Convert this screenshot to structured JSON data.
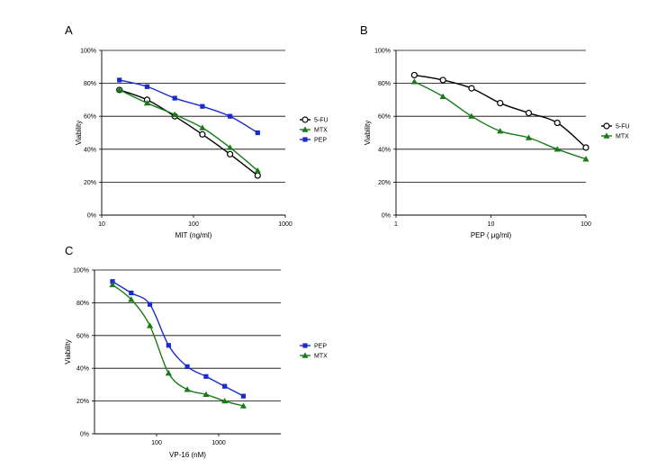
{
  "chart_data": [
    {
      "panel": "A",
      "type": "line",
      "xscale": "log",
      "xlabel": "MIT (ng/ml)",
      "ylabel": "Viability",
      "xlim": [
        10,
        1000
      ],
      "ylim": [
        0,
        100
      ],
      "xticks": [
        10,
        100,
        1000
      ],
      "xtick_labels": [
        "10",
        "100",
        "1000"
      ],
      "yticks": [
        0,
        20,
        40,
        60,
        80,
        100
      ],
      "ytick_labels": [
        "0%",
        "20%",
        "40%",
        "60%",
        "80%",
        "100%"
      ],
      "grid": "horizontal",
      "legend_position": "right",
      "series": [
        {
          "name": "5-FU",
          "marker": "circle-open",
          "color": "#000000",
          "x": [
            15.6,
            31.25,
            62.5,
            125,
            250,
            500
          ],
          "y": [
            76,
            70,
            60,
            49,
            37,
            24
          ]
        },
        {
          "name": "MTX",
          "marker": "triangle",
          "color": "#1a7a1a",
          "x": [
            15.6,
            31.25,
            62.5,
            125,
            250,
            500
          ],
          "y": [
            76,
            68,
            61,
            53,
            41,
            27
          ]
        },
        {
          "name": "PEP",
          "marker": "square",
          "color": "#1a2ad0",
          "x": [
            15.6,
            31.25,
            62.5,
            125,
            250,
            500
          ],
          "y": [
            82,
            78,
            71,
            66,
            60,
            50
          ]
        }
      ]
    },
    {
      "panel": "B",
      "type": "line",
      "xscale": "log",
      "xlabel": "PEP (  μg/ml)",
      "ylabel": "Viability",
      "xlim": [
        1,
        100
      ],
      "ylim": [
        0,
        100
      ],
      "xticks": [
        1,
        10,
        100
      ],
      "xtick_labels": [
        "1",
        "10",
        "100"
      ],
      "yticks": [
        0,
        20,
        40,
        60,
        80,
        100
      ],
      "ytick_labels": [
        "0%",
        "20%",
        "40%",
        "60%",
        "80%",
        "100%"
      ],
      "grid": "horizontal",
      "legend_position": "right",
      "series": [
        {
          "name": "5-FU",
          "marker": "circle-open",
          "color": "#000000",
          "x": [
            1.56,
            3.125,
            6.25,
            12.5,
            25,
            50,
            100
          ],
          "y": [
            85,
            82,
            77,
            68,
            62,
            56,
            41
          ]
        },
        {
          "name": "MTX",
          "marker": "triangle",
          "color": "#1a7a1a",
          "x": [
            1.56,
            3.125,
            6.25,
            12.5,
            25,
            50,
            100
          ],
          "y": [
            81,
            72,
            60,
            51,
            47,
            40,
            34
          ]
        }
      ]
    },
    {
      "panel": "C",
      "type": "line",
      "xscale": "log",
      "xlabel": "VP-16 (nM)",
      "ylabel": "Viability",
      "xlim": [
        10,
        10000
      ],
      "ylim": [
        0,
        100
      ],
      "xticks": [
        100,
        1000
      ],
      "xtick_labels": [
        "100",
        "1000"
      ],
      "yticks": [
        0,
        20,
        40,
        60,
        80,
        100
      ],
      "ytick_labels": [
        "0%",
        "20%",
        "40%",
        "60%",
        "80%",
        "100%"
      ],
      "grid": "horizontal",
      "legend_position": "right",
      "series": [
        {
          "name": "PEP",
          "marker": "square",
          "color": "#1a2ad0",
          "x": [
            19.5,
            39,
            78,
            156,
            312,
            625,
            1250,
            2500
          ],
          "y": [
            93,
            86,
            79,
            54,
            41,
            35,
            29,
            23
          ]
        },
        {
          "name": "MTX",
          "marker": "triangle",
          "color": "#1a7a1a",
          "x": [
            19.5,
            39,
            78,
            156,
            312,
            625,
            1250,
            2500
          ],
          "y": [
            91,
            82,
            66,
            37,
            27,
            24,
            20,
            17
          ]
        }
      ]
    }
  ]
}
